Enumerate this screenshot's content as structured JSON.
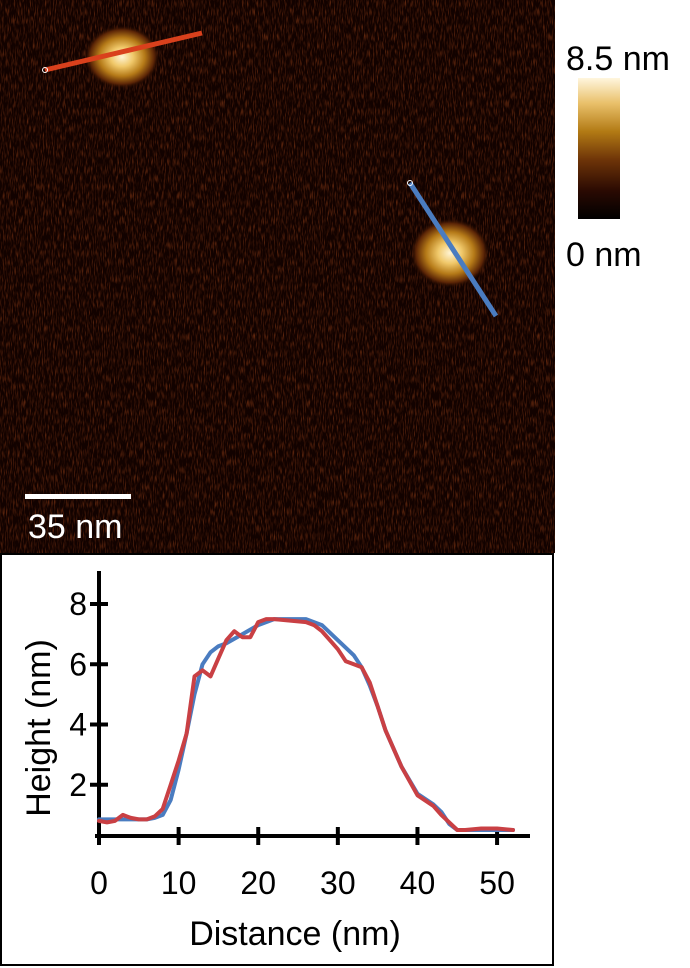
{
  "image": {
    "scale_bar_label": "35 nm",
    "colorbar": {
      "max_label": "8.5 nm",
      "min_label": "0 nm"
    },
    "profile_line_colors": {
      "red": "#d9401c",
      "blue": "#4a7cc0"
    }
  },
  "chart_data": {
    "type": "line",
    "xlabel": "Distance (nm)",
    "ylabel": "Height (nm)",
    "xlim": [
      0,
      52
    ],
    "ylim": [
      0.3,
      8.5
    ],
    "xticks": [
      0,
      10,
      20,
      30,
      40,
      50
    ],
    "yticks": [
      2,
      4,
      6,
      8
    ],
    "grid": false,
    "series": [
      {
        "color": "#4a7cc0",
        "x": [
          0,
          2,
          4,
          6,
          7,
          8,
          9,
          10,
          11,
          12,
          13,
          14,
          15,
          16,
          18,
          20,
          22,
          24,
          26,
          28,
          30,
          32,
          33,
          34,
          35,
          36,
          38,
          40,
          42,
          43,
          44,
          45,
          46,
          48,
          50,
          52
        ],
        "y": [
          0.85,
          0.85,
          0.85,
          0.85,
          0.9,
          1.0,
          1.5,
          2.5,
          3.7,
          5.0,
          6.0,
          6.4,
          6.6,
          6.7,
          7.0,
          7.3,
          7.5,
          7.5,
          7.5,
          7.3,
          6.8,
          6.3,
          5.9,
          5.3,
          4.6,
          3.8,
          2.6,
          1.7,
          1.35,
          1.1,
          0.7,
          0.5,
          0.5,
          0.5,
          0.5,
          0.5
        ]
      },
      {
        "color": "#c94044",
        "x": [
          0,
          1,
          2,
          3,
          4,
          5,
          6,
          7,
          8,
          9,
          10,
          11,
          12,
          13,
          14,
          15,
          16,
          17,
          18,
          19,
          20,
          21,
          22,
          24,
          26,
          27,
          28,
          29,
          30,
          31,
          32,
          33,
          34,
          35,
          36,
          38,
          40,
          42,
          43,
          44,
          45,
          46,
          48,
          50,
          52
        ],
        "y": [
          0.8,
          0.75,
          0.8,
          1.0,
          0.9,
          0.85,
          0.85,
          0.95,
          1.2,
          2.0,
          2.8,
          3.7,
          5.6,
          5.8,
          5.6,
          6.2,
          6.8,
          7.1,
          6.9,
          6.9,
          7.4,
          7.5,
          7.5,
          7.45,
          7.4,
          7.3,
          7.1,
          6.8,
          6.5,
          6.1,
          6.0,
          5.9,
          5.4,
          4.6,
          3.8,
          2.6,
          1.65,
          1.3,
          1.0,
          0.75,
          0.5,
          0.5,
          0.55,
          0.55,
          0.5
        ]
      }
    ]
  }
}
